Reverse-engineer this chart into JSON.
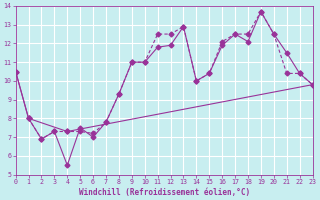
{
  "bg_color": "#c8eef0",
  "grid_color": "#ffffff",
  "line_color": "#993399",
  "xlabel": "Windchill (Refroidissement éolien,°C)",
  "xlim": [
    0,
    23
  ],
  "ylim": [
    5,
    14
  ],
  "xticks": [
    0,
    1,
    2,
    3,
    4,
    5,
    6,
    7,
    8,
    9,
    10,
    11,
    12,
    13,
    14,
    15,
    16,
    17,
    18,
    19,
    20,
    21,
    22,
    23
  ],
  "yticks": [
    5,
    6,
    7,
    8,
    9,
    10,
    11,
    12,
    13,
    14
  ],
  "line1_x": [
    0,
    1,
    2,
    3,
    4,
    5,
    6,
    7,
    8,
    9,
    10,
    11,
    12,
    13,
    14,
    15,
    16,
    17,
    18,
    19,
    20,
    21,
    22,
    23
  ],
  "line1_y": [
    10.5,
    8.0,
    6.9,
    7.3,
    5.5,
    7.5,
    7.0,
    7.8,
    9.3,
    11.0,
    11.0,
    11.8,
    11.9,
    12.9,
    10.0,
    10.4,
    11.9,
    12.5,
    12.1,
    13.7,
    12.5,
    11.5,
    10.4,
    9.8
  ],
  "line2_x": [
    1,
    2,
    3,
    4,
    5,
    6,
    7,
    8,
    9,
    10,
    11,
    12,
    13,
    14,
    15,
    16,
    17,
    18,
    19,
    20,
    21,
    22,
    23
  ],
  "line2_y": [
    8.0,
    6.9,
    7.3,
    7.3,
    7.3,
    7.2,
    7.8,
    9.3,
    11.0,
    11.0,
    12.5,
    12.5,
    12.9,
    10.0,
    10.4,
    12.1,
    12.5,
    12.5,
    13.7,
    12.5,
    10.4,
    10.4,
    9.8
  ],
  "line3_x": [
    0,
    1,
    4,
    23
  ],
  "line3_y": [
    10.5,
    8.0,
    7.3,
    9.8
  ],
  "marker": "D",
  "markersize": 2.5
}
